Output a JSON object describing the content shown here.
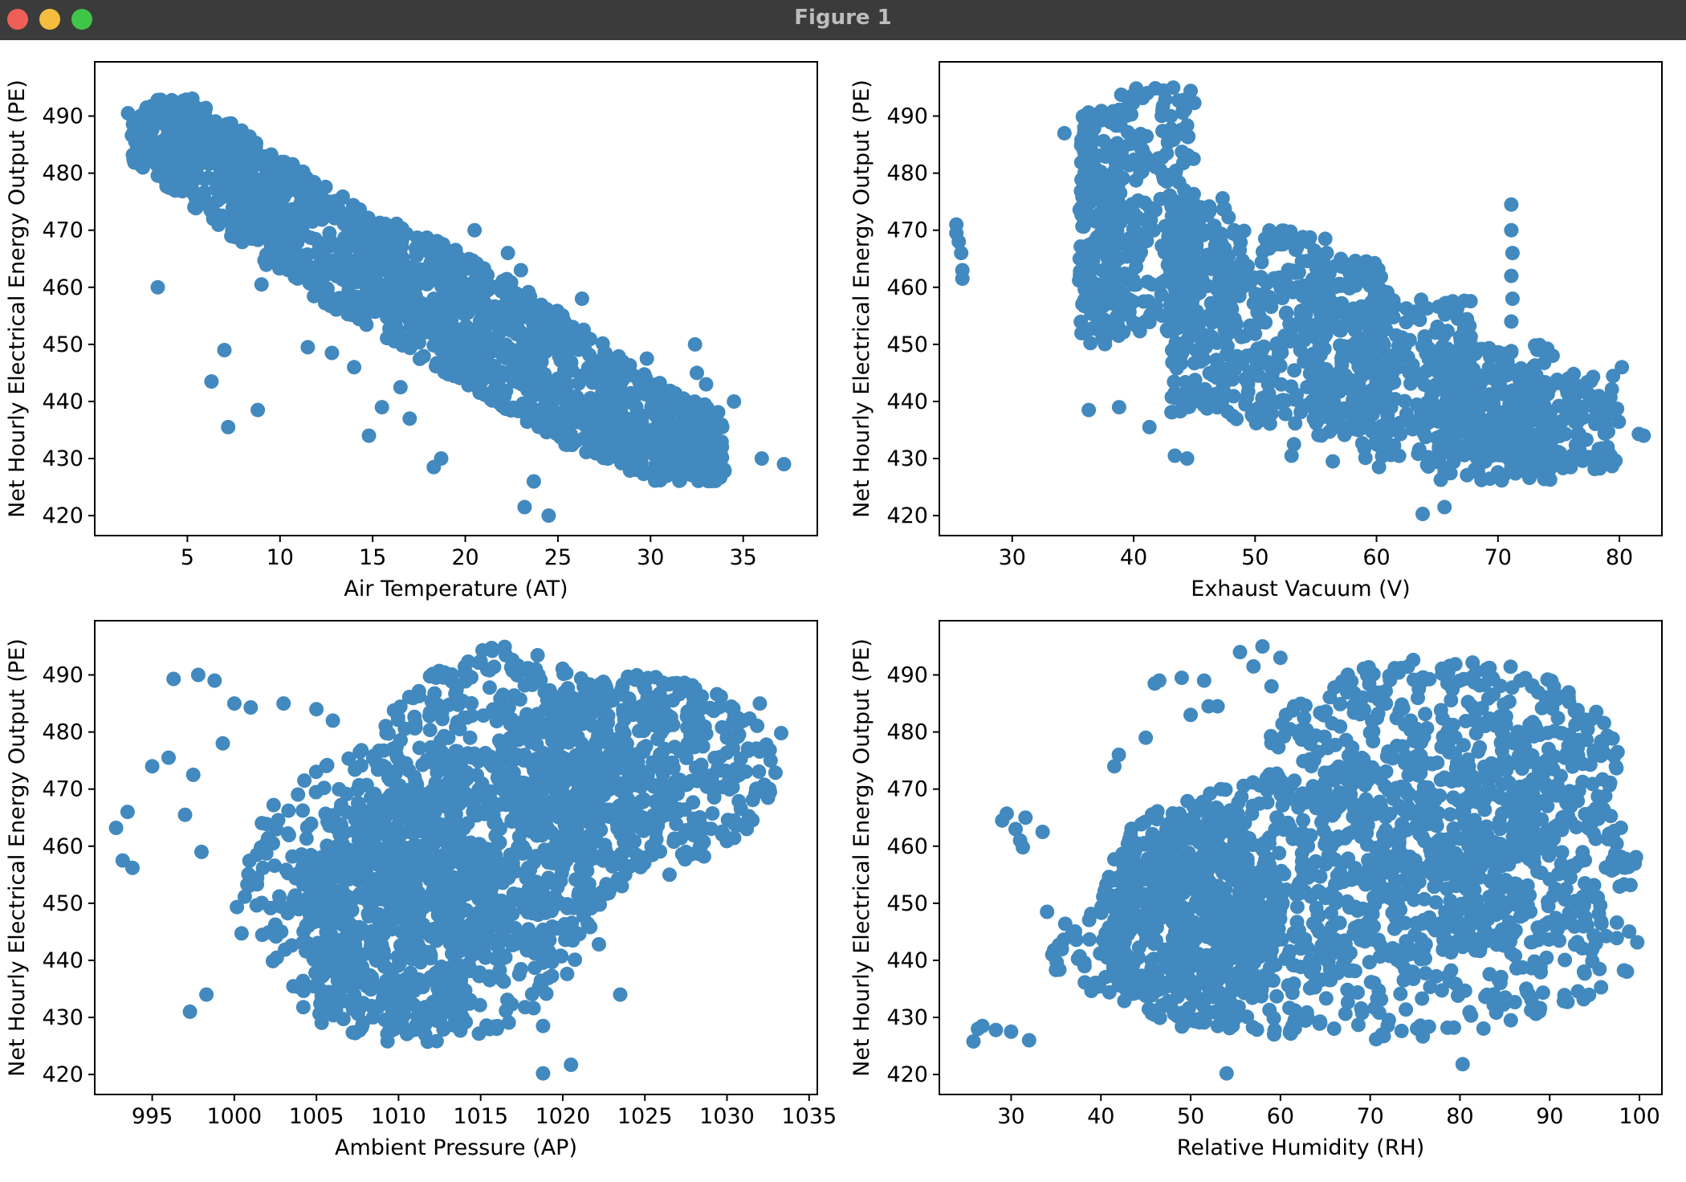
{
  "window": {
    "title": "Figure 1",
    "controls": [
      "close",
      "minimize",
      "maximize"
    ]
  },
  "colors": {
    "marker": "#4189be",
    "frame": "#000000",
    "titlebar": "#3b3b3b"
  },
  "chart_data": [
    {
      "type": "scatter",
      "xlabel": "Air Temperature (AT)",
      "ylabel": "Net Hourly Electrical Energy Output (PE)",
      "xlim": [
        0,
        39
      ],
      "ylim": [
        416.5,
        499.5
      ],
      "xticks": [
        5,
        10,
        15,
        20,
        25,
        30,
        35
      ],
      "yticks": [
        420,
        430,
        440,
        450,
        460,
        470,
        480,
        490
      ],
      "band": {
        "x": [
          2,
          5,
          10,
          15,
          20,
          25,
          30,
          34
        ],
        "lo": [
          482,
          475,
          462,
          452,
          443,
          433,
          426,
          426
        ],
        "hi": [
          492,
          494,
          483,
          473,
          466,
          456,
          444,
          438
        ]
      },
      "points": [
        [
          1.8,
          490.5
        ],
        [
          2.5,
          490
        ],
        [
          3,
          491
        ],
        [
          3.5,
          492
        ],
        [
          2.6,
          481
        ],
        [
          2.8,
          483
        ],
        [
          3.2,
          485
        ],
        [
          3.4,
          460
        ],
        [
          5,
          489
        ],
        [
          6,
          487
        ],
        [
          6.3,
          443.5
        ],
        [
          7,
          449
        ],
        [
          7.2,
          435.5
        ],
        [
          8.8,
          438.5
        ],
        [
          9,
          460.5
        ],
        [
          11.5,
          449.5
        ],
        [
          12.8,
          448.5
        ],
        [
          14,
          446
        ],
        [
          14.8,
          434
        ],
        [
          15.5,
          439
        ],
        [
          16.5,
          442.5
        ],
        [
          17,
          437
        ],
        [
          18.3,
          428.5
        ],
        [
          18.7,
          430
        ],
        [
          20.5,
          470
        ],
        [
          22.3,
          466
        ],
        [
          23,
          463
        ],
        [
          23.2,
          421.5
        ],
        [
          23.7,
          426
        ],
        [
          24.5,
          420
        ],
        [
          26.3,
          458
        ],
        [
          29.8,
          447.5
        ],
        [
          32.4,
          450
        ],
        [
          32.5,
          445
        ],
        [
          33,
          443
        ],
        [
          36,
          430
        ],
        [
          37.2,
          429
        ],
        [
          34.5,
          440
        ]
      ]
    },
    {
      "type": "scatter",
      "xlabel": "Exhaust Vacuum (V)",
      "ylabel": "Net Hourly Electrical Energy Output (PE)",
      "xlim": [
        24,
        83.5
      ],
      "ylim": [
        416.5,
        499.5
      ],
      "xticks": [
        30,
        40,
        50,
        60,
        70,
        80
      ],
      "yticks": [
        420,
        430,
        440,
        450,
        460,
        470,
        480,
        490
      ],
      "clusters": [
        {
          "x": [
            35.5,
            39
          ],
          "y": [
            450,
            491
          ]
        },
        {
          "x": [
            38.5,
            45
          ],
          "y": [
            452,
            495
          ]
        },
        {
          "x": [
            43,
            48
          ],
          "y": [
            438,
            476
          ]
        },
        {
          "x": [
            48,
            56
          ],
          "y": [
            436,
            470
          ]
        },
        {
          "x": [
            55,
            61
          ],
          "y": [
            434,
            465
          ]
        },
        {
          "x": [
            58,
            68
          ],
          "y": [
            430,
            458
          ]
        },
        {
          "x": [
            64,
            75
          ],
          "y": [
            426,
            450
          ]
        },
        {
          "x": [
            68,
            80
          ],
          "y": [
            428,
            445
          ]
        }
      ],
      "points": [
        [
          25.4,
          471
        ],
        [
          25.4,
          469.5
        ],
        [
          25.8,
          466
        ],
        [
          25.9,
          463
        ],
        [
          25.9,
          461.5
        ],
        [
          25.6,
          468
        ],
        [
          34.3,
          487
        ],
        [
          36.3,
          438.5
        ],
        [
          38.8,
          439
        ],
        [
          41.3,
          435.5
        ],
        [
          43.4,
          430.5
        ],
        [
          44.4,
          430
        ],
        [
          53.2,
          432.5
        ],
        [
          53,
          430.5
        ],
        [
          56.4,
          429.5
        ],
        [
          60.2,
          428.5
        ],
        [
          63.8,
          420.3
        ],
        [
          65.6,
          421.5
        ],
        [
          71.1,
          474.5
        ],
        [
          71.1,
          470
        ],
        [
          71.2,
          466
        ],
        [
          71.1,
          462
        ],
        [
          71.2,
          458
        ],
        [
          71.1,
          454
        ],
        [
          74.5,
          448
        ],
        [
          75.8,
          444
        ],
        [
          78.7,
          439
        ],
        [
          80.2,
          446
        ],
        [
          81.6,
          434.3
        ],
        [
          82,
          434
        ]
      ]
    },
    {
      "type": "scatter",
      "xlabel": "Ambient Pressure (AP)",
      "ylabel": "Net Hourly Electrical Energy Output (PE)",
      "xlim": [
        991.5,
        1035.5
      ],
      "ylim": [
        416.5,
        499.5
      ],
      "xticks": [
        995,
        1000,
        1005,
        1010,
        1015,
        1020,
        1025,
        1030,
        1035
      ],
      "yticks": [
        420,
        430,
        440,
        450,
        460,
        470,
        480,
        490
      ],
      "blobs": [
        {
          "x": [
            1000,
            1022
          ],
          "y": [
            425,
            478
          ]
        },
        {
          "x": [
            1008,
            1025
          ],
          "y": [
            440,
            495
          ]
        },
        {
          "x": [
            1004,
            1016
          ],
          "y": [
            426,
            470
          ]
        },
        {
          "x": [
            1016,
            1033
          ],
          "y": [
            456,
            490
          ]
        }
      ],
      "points": [
        [
          992.8,
          463.2
        ],
        [
          993.2,
          457.5
        ],
        [
          993.5,
          466
        ],
        [
          993.8,
          456.2
        ],
        [
          995,
          474
        ],
        [
          996,
          475.5
        ],
        [
          996.3,
          489.3
        ],
        [
          997,
          465.5
        ],
        [
          997.5,
          472.5
        ],
        [
          997.3,
          431
        ],
        [
          997.8,
          490
        ],
        [
          998,
          459
        ],
        [
          998.3,
          434
        ],
        [
          998.8,
          489
        ],
        [
          999.3,
          478
        ],
        [
          1000,
          485
        ],
        [
          1001,
          484.3
        ],
        [
          1003,
          485
        ],
        [
          1005,
          484
        ],
        [
          1006,
          482
        ],
        [
          1018.8,
          428.5
        ],
        [
          1018.8,
          420.2
        ],
        [
          1020.5,
          421.7
        ],
        [
          1022.2,
          442.8
        ],
        [
          1023.5,
          434
        ],
        [
          1025,
          458
        ],
        [
          1026.5,
          455
        ],
        [
          1027.5,
          459
        ],
        [
          1030,
          479
        ],
        [
          1031,
          482
        ],
        [
          1032,
          485
        ],
        [
          1033.3,
          479.8
        ],
        [
          1032.5,
          468.5
        ]
      ]
    },
    {
      "type": "scatter",
      "xlabel": "Relative Humidity (RH)",
      "ylabel": "Net Hourly Electrical Energy Output (PE)",
      "xlim": [
        22,
        102.5
      ],
      "ylim": [
        416.5,
        499.5
      ],
      "xticks": [
        30,
        40,
        50,
        60,
        70,
        80,
        90,
        100
      ],
      "yticks": [
        420,
        430,
        440,
        450,
        460,
        470,
        480,
        490
      ],
      "blobs": [
        {
          "x": [
            34,
            100
          ],
          "y": [
            426,
            458
          ]
        },
        {
          "x": [
            45,
            100
          ],
          "y": [
            440,
            475
          ]
        },
        {
          "x": [
            58,
            98
          ],
          "y": [
            455,
            493
          ]
        },
        {
          "x": [
            40,
            60
          ],
          "y": [
            428,
            468
          ]
        }
      ],
      "points": [
        [
          25.8,
          425.8
        ],
        [
          26.3,
          428
        ],
        [
          26.8,
          428.5
        ],
        [
          28.3,
          427.8
        ],
        [
          29,
          464.5
        ],
        [
          29.5,
          465.7
        ],
        [
          30,
          427.5
        ],
        [
          30.5,
          463
        ],
        [
          31,
          461
        ],
        [
          31.3,
          459.8
        ],
        [
          31.6,
          465
        ],
        [
          32,
          426
        ],
        [
          33.5,
          462.5
        ],
        [
          34,
          448.5
        ],
        [
          41.5,
          474
        ],
        [
          42,
          476
        ],
        [
          45,
          479
        ],
        [
          46,
          488.5
        ],
        [
          46.5,
          489
        ],
        [
          49,
          489.5
        ],
        [
          50,
          483
        ],
        [
          51.5,
          489
        ],
        [
          52,
          484.5
        ],
        [
          53,
          484.5
        ],
        [
          54,
          420.2
        ],
        [
          55.5,
          494
        ],
        [
          57,
          491.5
        ],
        [
          58,
          495
        ],
        [
          59,
          488
        ],
        [
          60,
          493
        ],
        [
          80.3,
          421.8
        ]
      ]
    }
  ]
}
